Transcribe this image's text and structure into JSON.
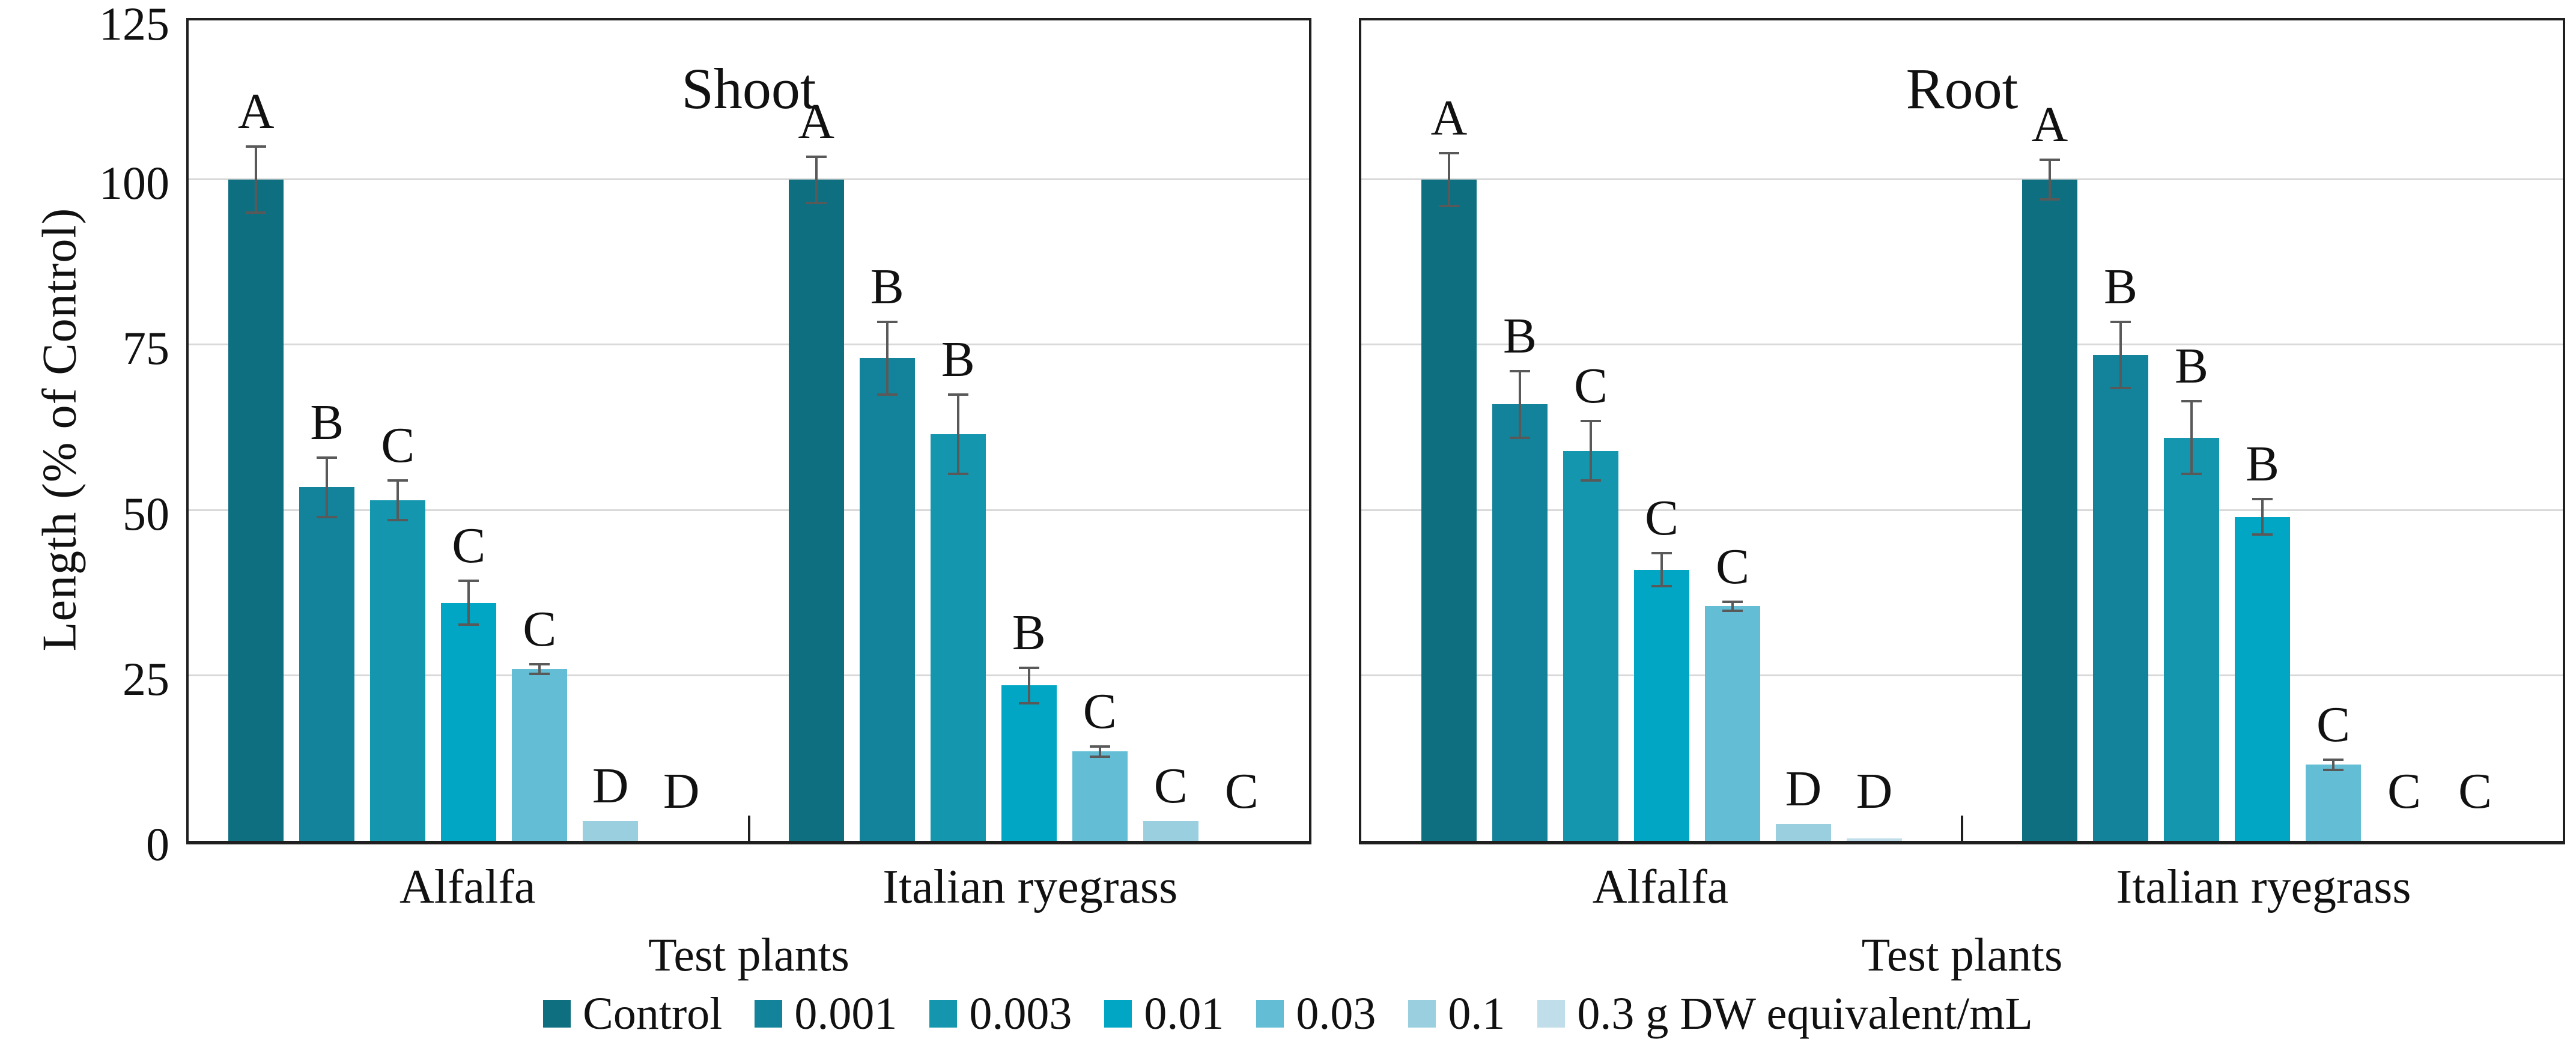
{
  "chart_data": {
    "type": "bar",
    "title": "",
    "ylabel": "Length (% of Control)",
    "xlabel": "Test plants",
    "ylim": [
      0,
      125
    ],
    "yticks": [
      0,
      25,
      50,
      75,
      100,
      125
    ],
    "gridlines": [
      25,
      50,
      75,
      100
    ],
    "grid": "horizontal",
    "error_bar_color": "#595959",
    "legend": {
      "position": "bottom",
      "items": [
        {
          "label": "Control",
          "color": "#0E6F81"
        },
        {
          "label": "0.001",
          "color": "#13839B"
        },
        {
          "label": "0.003",
          "color": "#1396AE"
        },
        {
          "label": "0.01",
          "color": "#00A6C4"
        },
        {
          "label": "0.03",
          "color": "#62BDD5"
        },
        {
          "label": "0.1",
          "color": "#9ACFDF"
        },
        {
          "label": "0.3 g DW equivalent/mL",
          "color": "#BFDEEA"
        }
      ]
    },
    "panels": [
      {
        "title": "Shoot",
        "xlabel": "Test plants",
        "groups": [
          {
            "category": "Alfalfa",
            "values": [
              100,
              53.5,
              51.5,
              36,
              26,
              3,
              0
            ],
            "errors": [
              5,
              4.5,
              3,
              3.3,
              0.7,
              0,
              0
            ],
            "letters": [
              "A",
              "B",
              "C",
              "C",
              "C",
              "D",
              "D"
            ]
          },
          {
            "category": "Italian ryegrass",
            "values": [
              100,
              73,
              61.5,
              23.5,
              13.5,
              3,
              0
            ],
            "errors": [
              3.5,
              5.5,
              6,
              2.7,
              0.8,
              0,
              0
            ],
            "letters": [
              "A",
              "B",
              "B",
              "B",
              "C",
              "C",
              "C"
            ]
          }
        ]
      },
      {
        "title": "Root",
        "xlabel": "Test plants",
        "groups": [
          {
            "category": "Alfalfa",
            "values": [
              100,
              66,
              59,
              41,
              35.5,
              2.5,
              0.4
            ],
            "errors": [
              4,
              5,
              4.5,
              2.5,
              0.7,
              0,
              0
            ],
            "letters": [
              "A",
              "B",
              "C",
              "C",
              "C",
              "D",
              "D"
            ]
          },
          {
            "category": "Italian ryegrass",
            "values": [
              100,
              73.5,
              61,
              49,
              11.5,
              0,
              0
            ],
            "errors": [
              3,
              5,
              5.5,
              2.7,
              0.8,
              0,
              0
            ],
            "letters": [
              "A",
              "B",
              "B",
              "B",
              "C",
              "C",
              "C"
            ]
          }
        ]
      }
    ]
  }
}
